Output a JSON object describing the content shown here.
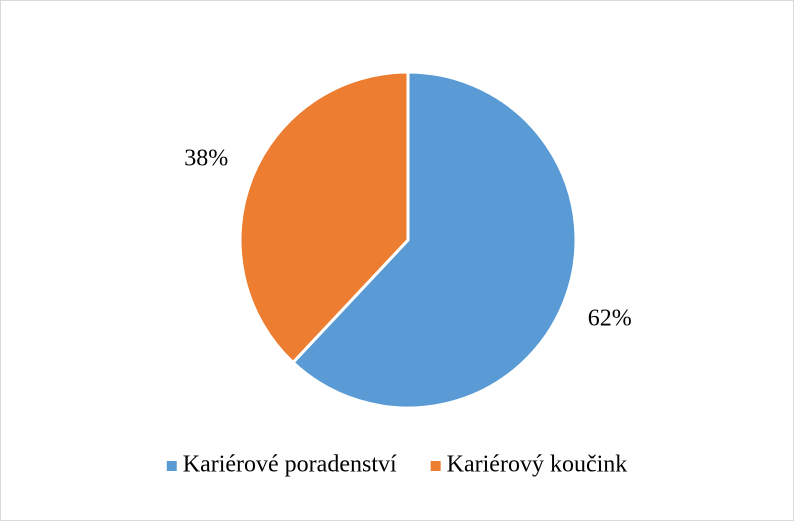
{
  "chart_data": {
    "type": "pie",
    "categories": [
      "Kariérové poradenství",
      "Kariérový koučink"
    ],
    "values": [
      62,
      38
    ],
    "value_labels": [
      "62%",
      "38%"
    ],
    "colors": [
      "#5b9bd5",
      "#ed7d31"
    ],
    "legend": "bottom"
  }
}
